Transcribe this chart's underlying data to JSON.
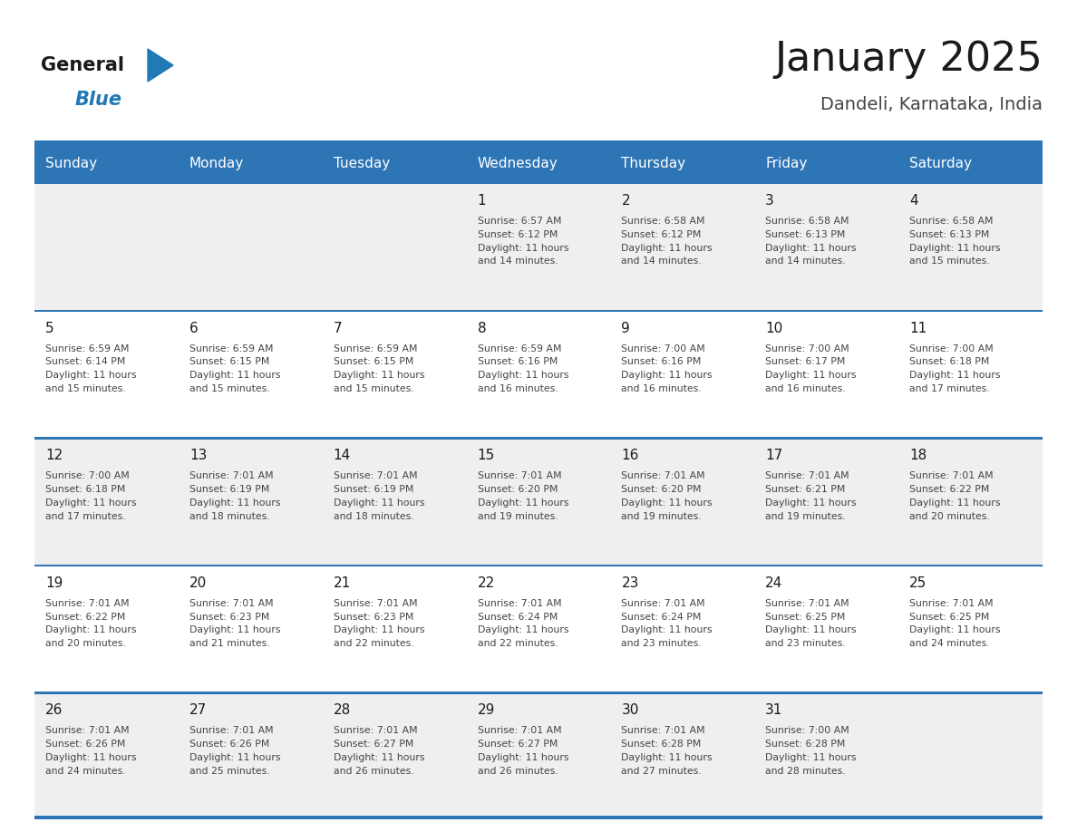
{
  "title": "January 2025",
  "subtitle": "Dandeli, Karnataka, India",
  "header_bg": "#2E75B6",
  "header_text_color": "#FFFFFF",
  "days_of_week": [
    "Sunday",
    "Monday",
    "Tuesday",
    "Wednesday",
    "Thursday",
    "Friday",
    "Saturday"
  ],
  "weeks": [
    [
      {
        "day": "",
        "info": ""
      },
      {
        "day": "",
        "info": ""
      },
      {
        "day": "",
        "info": ""
      },
      {
        "day": "1",
        "info": "Sunrise: 6:57 AM\nSunset: 6:12 PM\nDaylight: 11 hours\nand 14 minutes."
      },
      {
        "day": "2",
        "info": "Sunrise: 6:58 AM\nSunset: 6:12 PM\nDaylight: 11 hours\nand 14 minutes."
      },
      {
        "day": "3",
        "info": "Sunrise: 6:58 AM\nSunset: 6:13 PM\nDaylight: 11 hours\nand 14 minutes."
      },
      {
        "day": "4",
        "info": "Sunrise: 6:58 AM\nSunset: 6:13 PM\nDaylight: 11 hours\nand 15 minutes."
      }
    ],
    [
      {
        "day": "5",
        "info": "Sunrise: 6:59 AM\nSunset: 6:14 PM\nDaylight: 11 hours\nand 15 minutes."
      },
      {
        "day": "6",
        "info": "Sunrise: 6:59 AM\nSunset: 6:15 PM\nDaylight: 11 hours\nand 15 minutes."
      },
      {
        "day": "7",
        "info": "Sunrise: 6:59 AM\nSunset: 6:15 PM\nDaylight: 11 hours\nand 15 minutes."
      },
      {
        "day": "8",
        "info": "Sunrise: 6:59 AM\nSunset: 6:16 PM\nDaylight: 11 hours\nand 16 minutes."
      },
      {
        "day": "9",
        "info": "Sunrise: 7:00 AM\nSunset: 6:16 PM\nDaylight: 11 hours\nand 16 minutes."
      },
      {
        "day": "10",
        "info": "Sunrise: 7:00 AM\nSunset: 6:17 PM\nDaylight: 11 hours\nand 16 minutes."
      },
      {
        "day": "11",
        "info": "Sunrise: 7:00 AM\nSunset: 6:18 PM\nDaylight: 11 hours\nand 17 minutes."
      }
    ],
    [
      {
        "day": "12",
        "info": "Sunrise: 7:00 AM\nSunset: 6:18 PM\nDaylight: 11 hours\nand 17 minutes."
      },
      {
        "day": "13",
        "info": "Sunrise: 7:01 AM\nSunset: 6:19 PM\nDaylight: 11 hours\nand 18 minutes."
      },
      {
        "day": "14",
        "info": "Sunrise: 7:01 AM\nSunset: 6:19 PM\nDaylight: 11 hours\nand 18 minutes."
      },
      {
        "day": "15",
        "info": "Sunrise: 7:01 AM\nSunset: 6:20 PM\nDaylight: 11 hours\nand 19 minutes."
      },
      {
        "day": "16",
        "info": "Sunrise: 7:01 AM\nSunset: 6:20 PM\nDaylight: 11 hours\nand 19 minutes."
      },
      {
        "day": "17",
        "info": "Sunrise: 7:01 AM\nSunset: 6:21 PM\nDaylight: 11 hours\nand 19 minutes."
      },
      {
        "day": "18",
        "info": "Sunrise: 7:01 AM\nSunset: 6:22 PM\nDaylight: 11 hours\nand 20 minutes."
      }
    ],
    [
      {
        "day": "19",
        "info": "Sunrise: 7:01 AM\nSunset: 6:22 PM\nDaylight: 11 hours\nand 20 minutes."
      },
      {
        "day": "20",
        "info": "Sunrise: 7:01 AM\nSunset: 6:23 PM\nDaylight: 11 hours\nand 21 minutes."
      },
      {
        "day": "21",
        "info": "Sunrise: 7:01 AM\nSunset: 6:23 PM\nDaylight: 11 hours\nand 22 minutes."
      },
      {
        "day": "22",
        "info": "Sunrise: 7:01 AM\nSunset: 6:24 PM\nDaylight: 11 hours\nand 22 minutes."
      },
      {
        "day": "23",
        "info": "Sunrise: 7:01 AM\nSunset: 6:24 PM\nDaylight: 11 hours\nand 23 minutes."
      },
      {
        "day": "24",
        "info": "Sunrise: 7:01 AM\nSunset: 6:25 PM\nDaylight: 11 hours\nand 23 minutes."
      },
      {
        "day": "25",
        "info": "Sunrise: 7:01 AM\nSunset: 6:25 PM\nDaylight: 11 hours\nand 24 minutes."
      }
    ],
    [
      {
        "day": "26",
        "info": "Sunrise: 7:01 AM\nSunset: 6:26 PM\nDaylight: 11 hours\nand 24 minutes."
      },
      {
        "day": "27",
        "info": "Sunrise: 7:01 AM\nSunset: 6:26 PM\nDaylight: 11 hours\nand 25 minutes."
      },
      {
        "day": "28",
        "info": "Sunrise: 7:01 AM\nSunset: 6:27 PM\nDaylight: 11 hours\nand 26 minutes."
      },
      {
        "day": "29",
        "info": "Sunrise: 7:01 AM\nSunset: 6:27 PM\nDaylight: 11 hours\nand 26 minutes."
      },
      {
        "day": "30",
        "info": "Sunrise: 7:01 AM\nSunset: 6:28 PM\nDaylight: 11 hours\nand 27 minutes."
      },
      {
        "day": "31",
        "info": "Sunrise: 7:00 AM\nSunset: 6:28 PM\nDaylight: 11 hours\nand 28 minutes."
      },
      {
        "day": "",
        "info": ""
      }
    ]
  ],
  "logo_color_general": "#1a1a1a",
  "logo_color_blue": "#2179B5",
  "logo_triangle_color": "#2179B5",
  "cell_bg_white": "#FFFFFF",
  "cell_bg_light": "#EFEFEF",
  "border_color": "#2E75B6",
  "day_number_color": "#1a1a1a",
  "info_text_color": "#444444",
  "title_color": "#1a1a1a",
  "subtitle_color": "#444444",
  "week_bg": [
    "#EFEFEF",
    "#FFFFFF",
    "#EFEFEF",
    "#FFFFFF",
    "#EFEFEF"
  ]
}
